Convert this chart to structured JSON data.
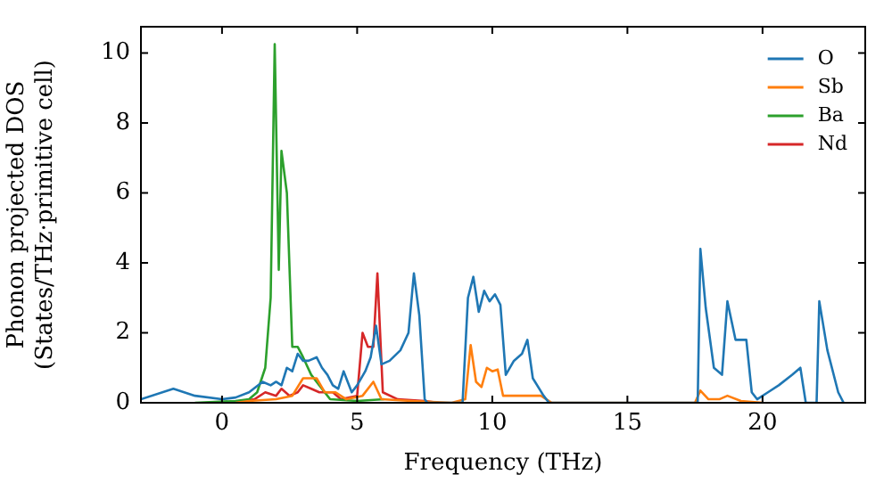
{
  "chart_data": {
    "type": "line",
    "xlabel": "Frequency (THz)",
    "ylabel": "Phonon projected DOS\n(States/THz·primitive cell)",
    "xlim": [
      -3,
      23.8
    ],
    "xticks": [
      0,
      5,
      10,
      15,
      20
    ],
    "ylim": [
      0,
      10.75
    ],
    "yticks": [
      0,
      2,
      4,
      6,
      8,
      10
    ],
    "legend": "top right",
    "grid": false,
    "marker": "none",
    "line_style": "solid",
    "series": [
      {
        "name": "O",
        "color": "#1f77b4",
        "x": [
          -3,
          -1.8,
          -1,
          0,
          0.5,
          1,
          1.5,
          1.8,
          2,
          2.2,
          2.4,
          2.6,
          2.8,
          3,
          3.2,
          3.5,
          3.7,
          3.9,
          4.1,
          4.3,
          4.5,
          4.8,
          5,
          5.3,
          5.5,
          5.7,
          5.9,
          6.2,
          6.6,
          6.9,
          7.1,
          7.3,
          7.5,
          7.6,
          8.9,
          9.1,
          9.3,
          9.5,
          9.7,
          9.9,
          10.1,
          10.3,
          10.5,
          10.8,
          11.1,
          11.3,
          11.5,
          11.9,
          12.1,
          17.6,
          17.7,
          17.9,
          18.2,
          18.5,
          18.7,
          19,
          19.4,
          19.6,
          19.8,
          20.2,
          20.6,
          21.1,
          21.4,
          21.6,
          22,
          22.1,
          22.4,
          22.8,
          23
        ],
        "values": [
          0.1,
          0.4,
          0.2,
          0.1,
          0.15,
          0.3,
          0.6,
          0.5,
          0.6,
          0.5,
          1,
          0.9,
          1.4,
          1.2,
          1.2,
          1.3,
          1,
          0.8,
          0.5,
          0.4,
          0.9,
          0.3,
          0.5,
          0.9,
          1.3,
          2.2,
          1.1,
          1.2,
          1.5,
          2,
          3.7,
          2.5,
          0.1,
          0,
          0,
          3,
          3.6,
          2.6,
          3.2,
          2.9,
          3.1,
          2.8,
          0.8,
          1.2,
          1.4,
          1.8,
          0.7,
          0.2,
          0,
          0,
          4.4,
          2.7,
          1,
          0.8,
          2.9,
          1.8,
          1.8,
          0.3,
          0.1,
          0.3,
          0.5,
          0.8,
          1,
          0,
          0,
          2.9,
          1.5,
          0.3,
          0
        ]
      },
      {
        "name": "Sb",
        "color": "#ff7f0e",
        "x": [
          0.5,
          1,
          2,
          2.6,
          3,
          3.5,
          3.8,
          4.2,
          4.6,
          5.2,
          5.6,
          5.9,
          7,
          8.5,
          9,
          9.2,
          9.4,
          9.6,
          9.8,
          10,
          10.2,
          10.4,
          11,
          11.8,
          12.2,
          17.5,
          17.7,
          18,
          18.4,
          18.7,
          19.2,
          20
        ],
        "values": [
          0,
          0.05,
          0.1,
          0.2,
          0.7,
          0.7,
          0.3,
          0.3,
          0.1,
          0.2,
          0.6,
          0.1,
          0.05,
          0,
          0.1,
          1.65,
          0.6,
          0.45,
          1,
          0.9,
          0.95,
          0.2,
          0.2,
          0.2,
          0,
          0,
          0.35,
          0.1,
          0.1,
          0.2,
          0.05,
          0
        ]
      },
      {
        "name": "Ba",
        "color": "#2ca02c",
        "x": [
          -1,
          0.5,
          1,
          1.3,
          1.6,
          1.8,
          1.95,
          2.1,
          2.2,
          2.4,
          2.6,
          2.8,
          3,
          3.3,
          3.6,
          4,
          5,
          6
        ],
        "values": [
          0,
          0.05,
          0.1,
          0.3,
          1,
          3,
          10.25,
          3.8,
          7.2,
          6,
          1.6,
          1.6,
          1.3,
          0.8,
          0.5,
          0.1,
          0.05,
          0.1
        ]
      },
      {
        "name": "Nd",
        "color": "#d62728",
        "x": [
          0.5,
          1.2,
          1.6,
          2,
          2.2,
          2.5,
          2.8,
          3,
          3.3,
          3.6,
          4.1,
          4.4,
          5,
          5.2,
          5.4,
          5.6,
          5.75,
          5.95,
          6.5,
          7.5,
          8
        ],
        "values": [
          0,
          0.1,
          0.3,
          0.2,
          0.4,
          0.2,
          0.3,
          0.5,
          0.4,
          0.3,
          0.3,
          0.1,
          0.2,
          2,
          1.6,
          1.6,
          3.7,
          0.3,
          0.1,
          0.05,
          0
        ]
      }
    ]
  }
}
